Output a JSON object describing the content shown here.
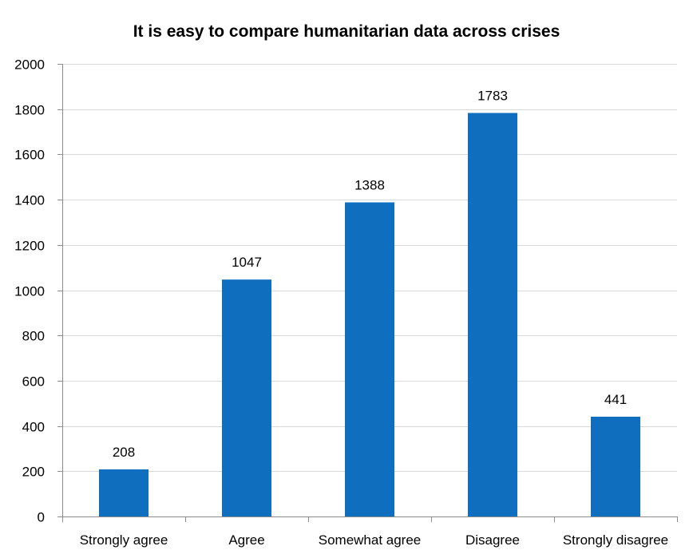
{
  "chart_data": {
    "type": "bar",
    "title": "It is easy to compare humanitarian data across crises",
    "xlabel": "",
    "ylabel": "",
    "categories": [
      "Strongly agree",
      "Agree",
      "Somewhat agree",
      "Disagree",
      "Strongly disagree"
    ],
    "values": [
      208,
      1047,
      1388,
      1783,
      441
    ],
    "data_labels": [
      "208",
      "1047",
      "1388",
      "1783",
      "441"
    ],
    "ylim": [
      0,
      2000
    ],
    "yticks": [
      0,
      200,
      400,
      600,
      800,
      1000,
      1200,
      1400,
      1600,
      1800,
      2000
    ],
    "grid": true,
    "legend": "none",
    "bar_color": "#106ebe",
    "grid_color": "#d9d9d9",
    "axis_color": "#8c8c8c"
  }
}
